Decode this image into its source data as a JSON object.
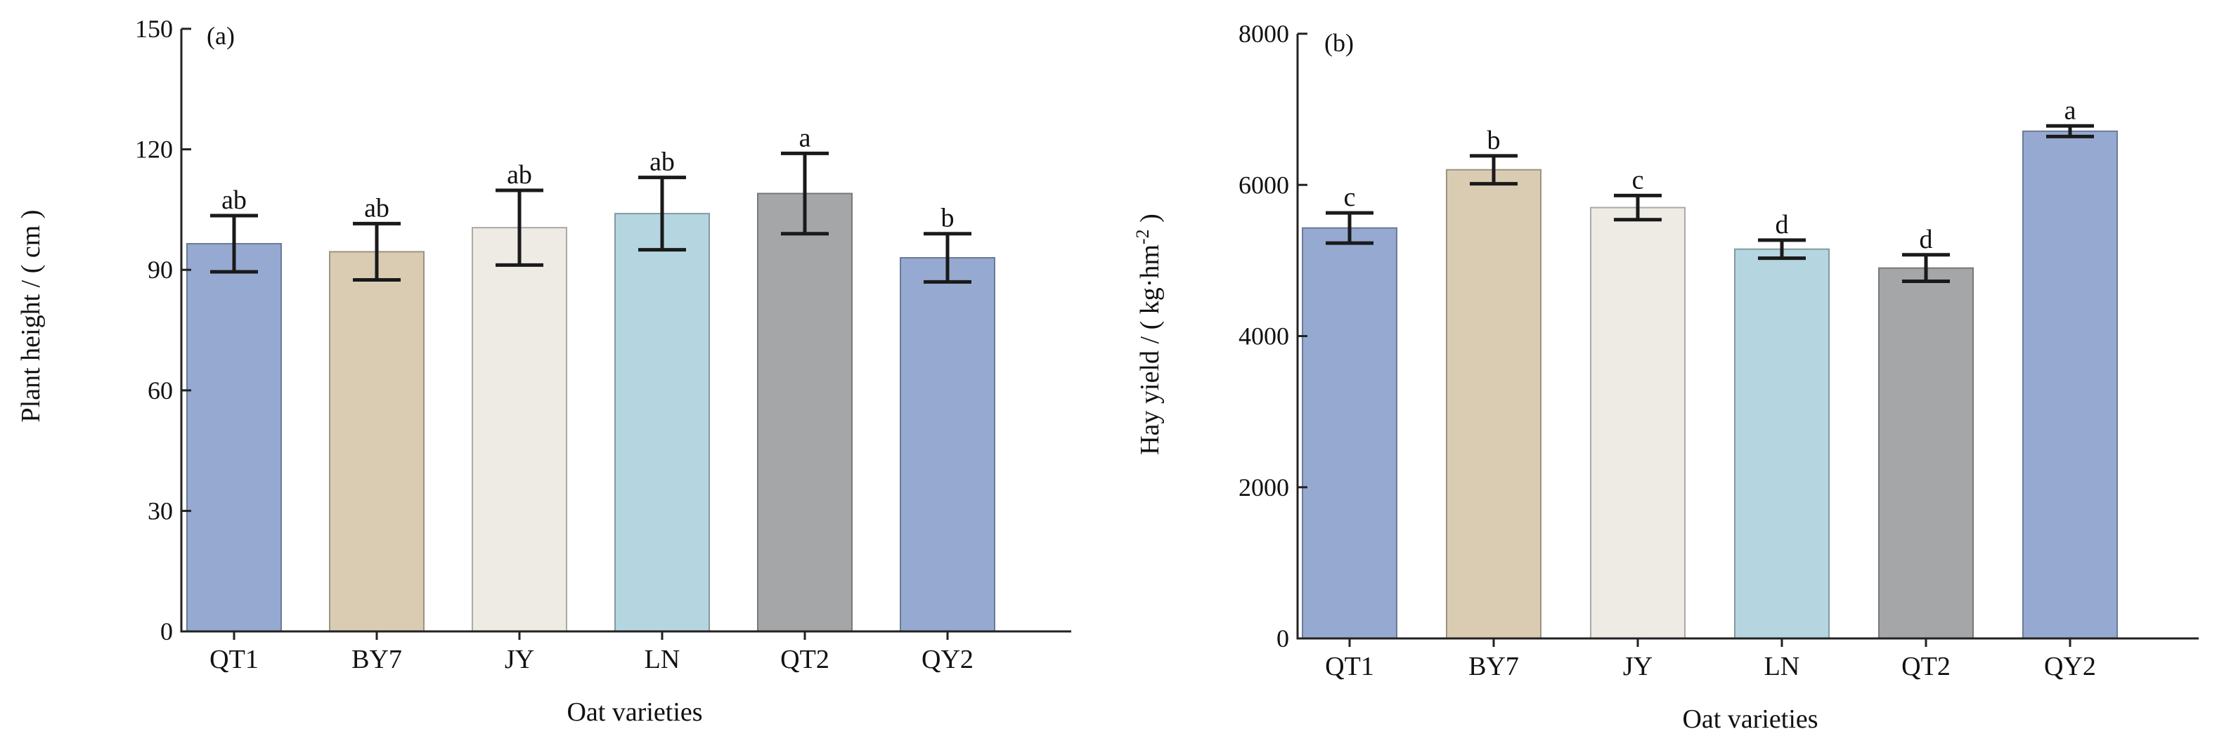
{
  "chart_data": [
    {
      "type": "bar",
      "panel_label": "(a)",
      "categories": [
        "QT1",
        "BY7",
        "JY",
        "LN",
        "QT2",
        "QY2"
      ],
      "values": [
        96.5,
        94.5,
        100.5,
        104,
        109,
        93
      ],
      "errors": [
        7,
        7,
        9.3,
        9,
        10,
        6
      ],
      "significance": [
        "ab",
        "ab",
        "ab",
        "ab",
        "a",
        "b"
      ],
      "colors": [
        "#96a9d1",
        "#d9ccb3",
        "#eeebe5",
        "#b5d6e0",
        "#a5a6a8",
        "#96a9d1"
      ],
      "xlabel": "Oat varieties",
      "ylabel": "Plant height / ( cm )",
      "ylim": [
        0,
        150
      ],
      "yticks": [
        0,
        30,
        60,
        90,
        120,
        150
      ],
      "ytick_labels": [
        "0",
        "30",
        "60",
        "90",
        "120",
        "150"
      ],
      "grid": false
    },
    {
      "type": "bar",
      "panel_label": "(b)",
      "categories": [
        "QT1",
        "BY7",
        "JY",
        "LN",
        "QT2",
        "QY2"
      ],
      "values": [
        5430,
        6200,
        5700,
        5150,
        4900,
        6710
      ],
      "errors": [
        200,
        185,
        160,
        120,
        175,
        70
      ],
      "significance": [
        "c",
        "b",
        "c",
        "d",
        "d",
        "a"
      ],
      "colors": [
        "#96a9d1",
        "#d9ccb3",
        "#eeebe5",
        "#b5d6e0",
        "#a5a6a8",
        "#96a9d1"
      ],
      "xlabel": "Oat varieties",
      "ylabel_main": "Hay yield / ( kg·hm",
      "ylabel_sup": "-2",
      "ylabel_end": " )",
      "ylim": [
        0,
        8000
      ],
      "yticks": [
        0,
        2000,
        4000,
        6000,
        8000
      ],
      "ytick_labels": [
        "0",
        "2000",
        "4000",
        "6000",
        "8000"
      ],
      "grid": false
    }
  ]
}
